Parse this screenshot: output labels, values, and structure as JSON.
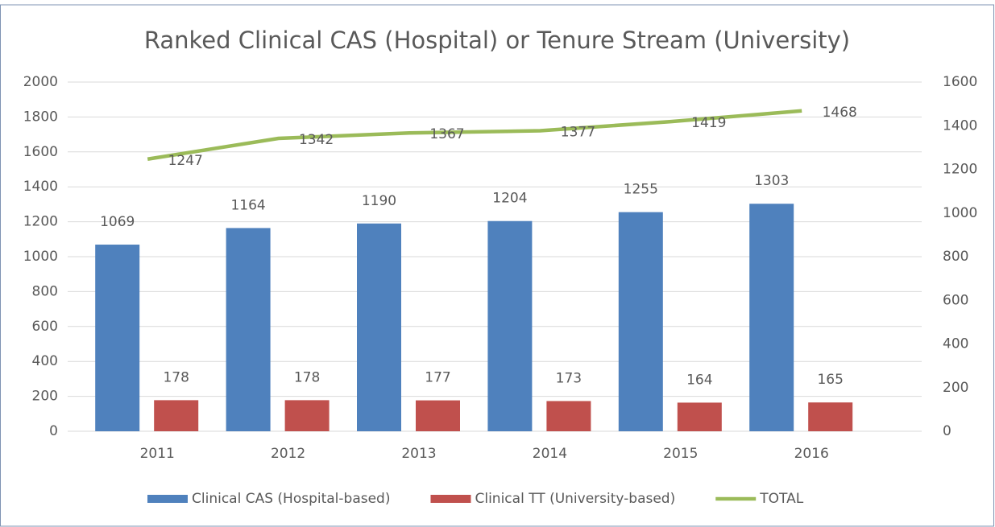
{
  "chart_data": {
    "type": "bar_line",
    "title": "Ranked Clinical CAS (Hospital) or Tenure Stream (University)",
    "categories": [
      "2011",
      "2012",
      "2013",
      "2014",
      "2015",
      "2016"
    ],
    "series": [
      {
        "name": "Clinical CAS (Hospital-based)",
        "color": "#4f81bd",
        "type": "bar",
        "values": [
          1069,
          1164,
          1190,
          1204,
          1255,
          1303
        ]
      },
      {
        "name": "Clinical TT (University-based)",
        "color": "#c0504d",
        "type": "bar",
        "values": [
          178,
          178,
          177,
          173,
          164,
          165
        ]
      },
      {
        "name": "TOTAL",
        "color": "#9bbb59",
        "type": "line",
        "axis": "y2",
        "values": [
          1247,
          1342,
          1367,
          1377,
          1419,
          1468
        ]
      }
    ],
    "ylim": [
      0,
      2000
    ],
    "yticks": [
      0,
      200,
      400,
      600,
      800,
      1000,
      1200,
      1400,
      1600,
      1800,
      2000
    ],
    "y2lim": [
      0,
      1600
    ],
    "y2ticks": [
      0,
      200,
      400,
      600,
      800,
      1000,
      1200,
      1400,
      1600
    ],
    "grid": true,
    "legend": "bottom"
  }
}
